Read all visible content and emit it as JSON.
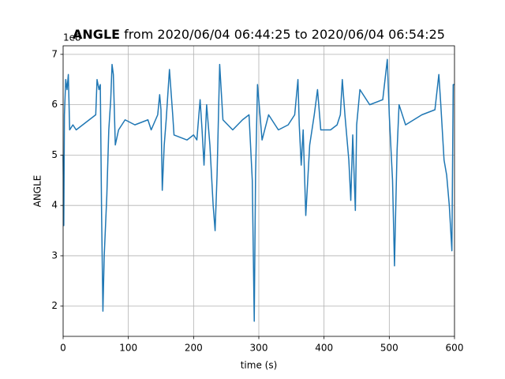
{
  "chart_data": {
    "type": "line",
    "title_parts": [
      "ANGLE",
      "from 2020/06/04 06:44:25 to 2020/06/04 06:54:25"
    ],
    "xlabel": "time (s)",
    "ylabel": "ANGLE",
    "y_offset_label": "1e8",
    "x": [
      0,
      1,
      2,
      4,
      6,
      8,
      10,
      15,
      20,
      30,
      40,
      50,
      52,
      55,
      57,
      59,
      61,
      63,
      67,
      70,
      73,
      75,
      77,
      80,
      85,
      95,
      110,
      130,
      135,
      145,
      148,
      150,
      152,
      155,
      158,
      163,
      168,
      170,
      190,
      200,
      205,
      210,
      213,
      216,
      220,
      225,
      230,
      233,
      236,
      240,
      245,
      260,
      275,
      285,
      290,
      293,
      295,
      298,
      305,
      315,
      330,
      345,
      355,
      360,
      362,
      365,
      368,
      372,
      378,
      385,
      390,
      395,
      410,
      420,
      425,
      428,
      432,
      438,
      441,
      444,
      448,
      450,
      455,
      470,
      490,
      497,
      500,
      505,
      508,
      510,
      512,
      515,
      525,
      550,
      570,
      576,
      579,
      584,
      588,
      592,
      596,
      598,
      600
    ],
    "series": [
      {
        "name": "ANGLE",
        "color": "#1f77b4",
        "values": [
          5.0,
          3.6,
          5.8,
          6.5,
          6.3,
          6.6,
          5.5,
          5.6,
          5.5,
          5.6,
          5.7,
          5.8,
          6.5,
          6.3,
          6.4,
          3.8,
          1.9,
          3.0,
          4.2,
          5.5,
          6.1,
          6.8,
          6.6,
          5.2,
          5.5,
          5.7,
          5.6,
          5.7,
          5.5,
          5.8,
          6.2,
          5.9,
          4.3,
          5.2,
          5.7,
          6.7,
          5.8,
          5.4,
          5.3,
          5.4,
          5.3,
          6.1,
          5.5,
          4.8,
          6.0,
          5.2,
          4.0,
          3.5,
          4.6,
          6.8,
          5.7,
          5.5,
          5.7,
          5.8,
          4.5,
          1.7,
          4.6,
          6.4,
          5.3,
          5.8,
          5.5,
          5.6,
          5.8,
          6.5,
          5.6,
          4.8,
          5.5,
          3.8,
          5.2,
          5.8,
          6.3,
          5.5,
          5.5,
          5.6,
          5.8,
          6.5,
          5.8,
          4.9,
          4.1,
          5.4,
          3.9,
          5.6,
          6.3,
          6.0,
          6.1,
          6.9,
          5.8,
          4.5,
          2.8,
          4.0,
          5.1,
          6.0,
          5.6,
          5.8,
          5.9,
          6.6,
          6.0,
          4.9,
          4.6,
          4.0,
          3.1,
          6.4,
          6.4
        ]
      }
    ],
    "xlim": [
      0,
      600
    ],
    "xticks": [
      0,
      100,
      200,
      300,
      400,
      500,
      600
    ],
    "ylim": [
      1.4,
      7.17
    ],
    "yticks": [
      2,
      3,
      4,
      5,
      6,
      7
    ],
    "grid": true
  }
}
